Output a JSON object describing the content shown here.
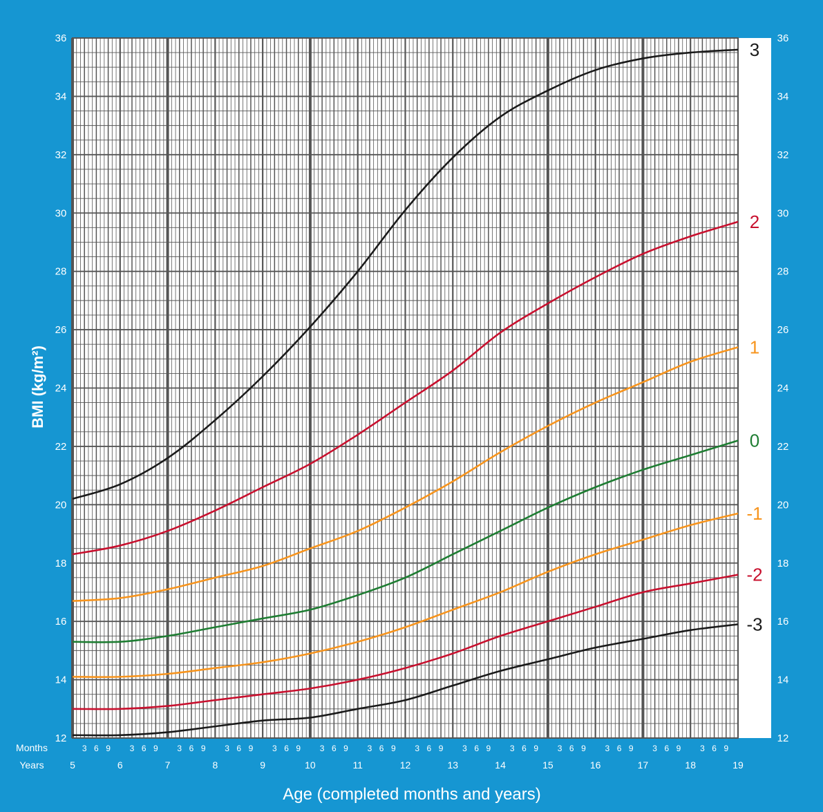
{
  "chart_data": {
    "type": "line",
    "title": "",
    "ylabel": "BMI (kg/m²)",
    "xlabel": "Age (completed months and years)",
    "row_label_months": "Months",
    "row_label_years": "Years",
    "xlim": [
      5,
      19
    ],
    "ylim": [
      12,
      36
    ],
    "x_ticks": [
      "5",
      "6",
      "7",
      "8",
      "9",
      "10",
      "11",
      "12",
      "13",
      "14",
      "15",
      "16",
      "17",
      "18",
      "19"
    ],
    "month_ticks": [
      "3",
      "6",
      "9"
    ],
    "y_ticks_left": [
      "12",
      "14",
      "16",
      "18",
      "20",
      "22",
      "24",
      "26",
      "28",
      "30",
      "32",
      "34",
      "36"
    ],
    "y_ticks_right": [
      "12",
      "14",
      "16",
      "18",
      "20",
      "22",
      "24",
      "26",
      "28",
      "30",
      "32",
      "34",
      "36"
    ],
    "grid": true,
    "x": [
      5,
      6,
      7,
      8,
      9,
      10,
      11,
      12,
      13,
      14,
      15,
      16,
      17,
      18,
      19
    ],
    "series": [
      {
        "name": "3",
        "color": "#1a1a1a",
        "values": [
          20.2,
          20.7,
          21.6,
          22.9,
          24.4,
          26.1,
          28.0,
          30.1,
          31.9,
          33.3,
          34.2,
          34.9,
          35.3,
          35.5,
          35.6
        ]
      },
      {
        "name": "2",
        "color": "#c8102e",
        "values": [
          18.3,
          18.6,
          19.1,
          19.8,
          20.6,
          21.4,
          22.4,
          23.5,
          24.6,
          25.9,
          26.9,
          27.8,
          28.6,
          29.2,
          29.7
        ]
      },
      {
        "name": "1",
        "color": "#f7941d",
        "values": [
          16.7,
          16.8,
          17.1,
          17.5,
          17.9,
          18.5,
          19.1,
          19.9,
          20.8,
          21.8,
          22.7,
          23.5,
          24.2,
          24.9,
          25.4
        ]
      },
      {
        "name": "0",
        "color": "#1e7d32",
        "values": [
          15.3,
          15.3,
          15.5,
          15.8,
          16.1,
          16.4,
          16.9,
          17.5,
          18.3,
          19.1,
          19.9,
          20.6,
          21.2,
          21.7,
          22.2
        ]
      },
      {
        "name": "-1",
        "color": "#f7941d",
        "values": [
          14.1,
          14.1,
          14.2,
          14.4,
          14.6,
          14.9,
          15.3,
          15.8,
          16.4,
          17.0,
          17.7,
          18.3,
          18.8,
          19.3,
          19.7
        ]
      },
      {
        "name": "-2",
        "color": "#c8102e",
        "values": [
          13.0,
          13.0,
          13.1,
          13.3,
          13.5,
          13.7,
          14.0,
          14.4,
          14.9,
          15.5,
          16.0,
          16.5,
          17.0,
          17.3,
          17.6
        ]
      },
      {
        "name": "-3",
        "color": "#1a1a1a",
        "values": [
          12.1,
          12.1,
          12.2,
          12.4,
          12.6,
          12.7,
          13.0,
          13.3,
          13.8,
          14.3,
          14.7,
          15.1,
          15.4,
          15.7,
          15.9
        ]
      }
    ],
    "colors": {
      "background": "#1696d2",
      "plot": "#ffffff",
      "grid_minor": "#555555",
      "grid_major": "#555555"
    }
  }
}
